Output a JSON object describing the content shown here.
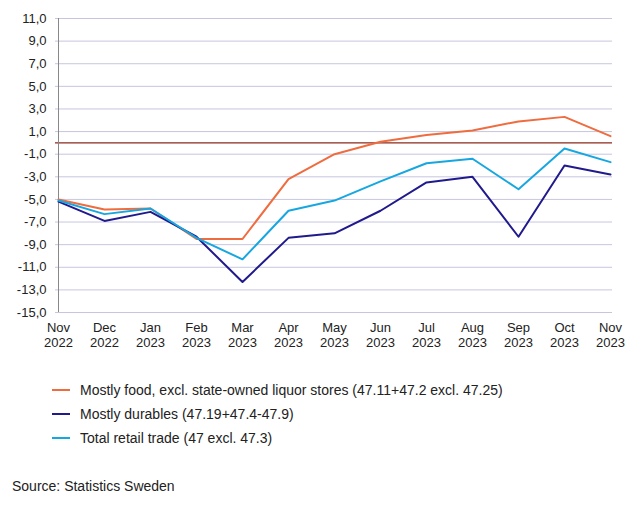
{
  "chart_data": {
    "type": "line",
    "categories": [
      "Nov 2022",
      "Dec 2022",
      "Jan 2023",
      "Feb 2023",
      "Mar 2023",
      "Apr 2023",
      "May 2023",
      "Jun 2023",
      "Jul 2023",
      "Aug 2023",
      "Sep 2023",
      "Oct 2023",
      "Nov 2023"
    ],
    "series": [
      {
        "name": "Mostly food, excl. state-owned liquor stores (47.11+47.2 excl. 47.25)",
        "color": "#ef6c3f",
        "values": [
          -5.0,
          -5.9,
          -5.8,
          -8.5,
          -8.5,
          -3.2,
          -1.0,
          0.1,
          0.7,
          1.1,
          1.9,
          2.3,
          0.6
        ]
      },
      {
        "name": "Mostly durables (47.19+47.4-47.9)",
        "color": "#201a8c",
        "values": [
          -5.2,
          -6.9,
          -6.1,
          -8.3,
          -12.3,
          -8.4,
          -8.0,
          -6.0,
          -3.5,
          -3.0,
          -8.3,
          -2.0,
          -2.8
        ]
      },
      {
        "name": "Total retail trade (47 excl. 47.3)",
        "color": "#17a7e0",
        "values": [
          -5.1,
          -6.3,
          -5.8,
          -8.4,
          -10.3,
          -6.0,
          -5.1,
          -3.4,
          -1.8,
          -1.4,
          -4.1,
          -0.5,
          -1.7
        ]
      }
    ],
    "ylim": [
      -15,
      11
    ],
    "yticks": [
      {
        "value": -15,
        "label": "-15,0"
      },
      {
        "value": -13,
        "label": "-13,0"
      },
      {
        "value": -11,
        "label": "-11,0"
      },
      {
        "value": -9,
        "label": "-9,0"
      },
      {
        "value": -7,
        "label": "-7,0"
      },
      {
        "value": -5,
        "label": "-5,0"
      },
      {
        "value": -3,
        "label": "-3,0"
      },
      {
        "value": -1,
        "label": "-1,0"
      },
      {
        "value": 1,
        "label": "1,0"
      },
      {
        "value": 3,
        "label": "3,0"
      },
      {
        "value": 5,
        "label": "5,0"
      },
      {
        "value": 7,
        "label": "7,0"
      },
      {
        "value": 9,
        "label": "9,0"
      },
      {
        "value": 11,
        "label": "11,0"
      }
    ],
    "grid": true,
    "legend": "bottom",
    "caption": "Source: Statistics Sweden"
  }
}
